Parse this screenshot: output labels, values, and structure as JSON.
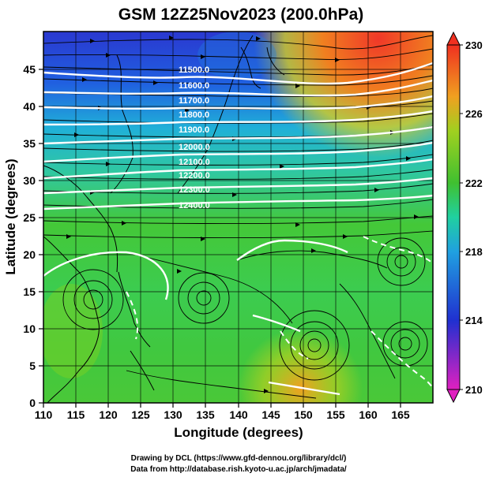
{
  "title": "GSM 12Z25Nov2023 (200.0hPa)",
  "xlabel": "Longitude (degrees)",
  "ylabel": "Latitude (degrees)",
  "x_ticks": [
    "110",
    "115",
    "120",
    "125",
    "130",
    "135",
    "140",
    "145",
    "150",
    "155",
    "160",
    "165"
  ],
  "y_ticks": [
    "0",
    "5",
    "10",
    "15",
    "20",
    "25",
    "30",
    "35",
    "40",
    "45"
  ],
  "colorbar_ticks": [
    "210",
    "214",
    "218",
    "222",
    "226",
    "230"
  ],
  "contour_labels": [
    "11500.0",
    "11600.0",
    "11700.0",
    "11800.0",
    "11900.0",
    "12000.0",
    "12100.0",
    "12200.0",
    "12300.0",
    "12400.0"
  ],
  "credits": {
    "line1": "Drawing by DCL (https://www.gfd-dennou.org/library/dcl/)",
    "line2": "Data from http://database.rish.kyoto-u.ac.jp/arch/jmadata/"
  },
  "colors": {
    "low": "#e020c0",
    "mid_low": "#2030d0",
    "mid": "#20c0d0",
    "mid_high": "#40c030",
    "high": "#f03020"
  },
  "chart_data": {
    "type": "heatmap",
    "x_range": [
      110,
      170
    ],
    "y_range": [
      0,
      50
    ],
    "color_range": [
      210,
      230
    ],
    "contour_levels": [
      11500,
      11600,
      11700,
      11800,
      11900,
      12000,
      12100,
      12200,
      12300,
      12400
    ],
    "contour_lats_at_lon135": [
      46.5,
      44.5,
      42.5,
      40.8,
      38.8,
      36.5,
      34.5,
      32.0,
      29.3,
      26.5
    ]
  }
}
